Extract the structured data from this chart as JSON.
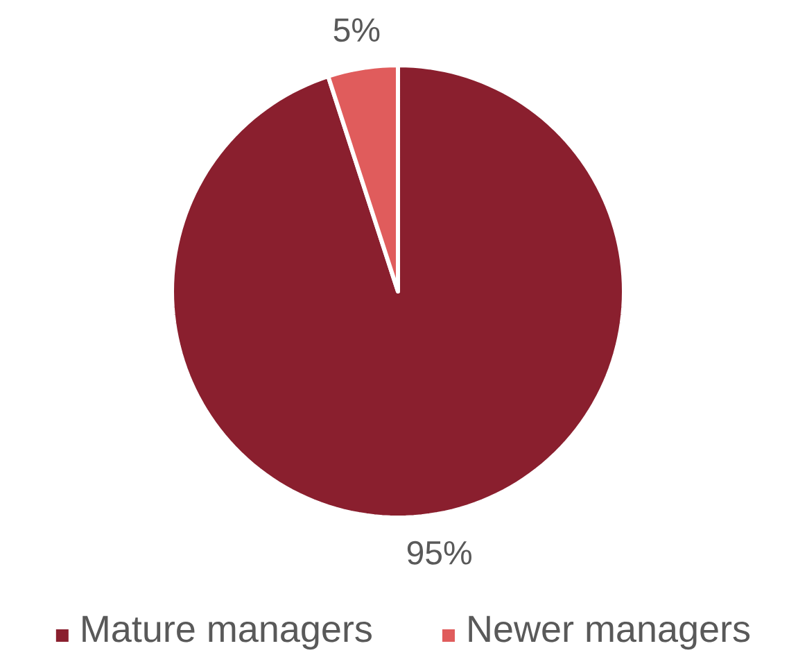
{
  "chart_data": {
    "type": "pie",
    "categories": [
      "Mature managers",
      "Newer managers"
    ],
    "values": [
      95,
      5
    ],
    "colors": [
      "#8a1f2e",
      "#e05c5c"
    ],
    "value_labels": [
      "95%",
      "5%"
    ],
    "legend": "bottom"
  }
}
